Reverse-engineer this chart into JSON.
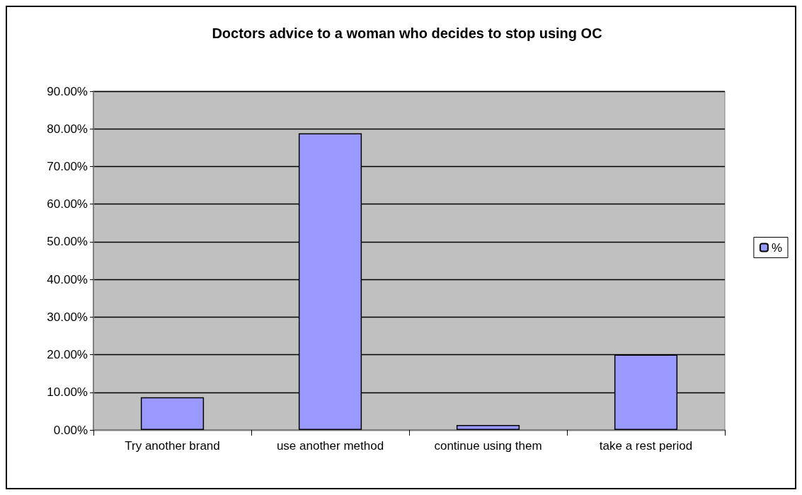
{
  "chart_data": {
    "type": "bar",
    "title": "Doctors advice to a woman who decides to stop using OC",
    "categories": [
      "Try another brand",
      "use another method",
      "continue using them",
      "take a rest period"
    ],
    "series": [
      {
        "name": "%",
        "color": "#9999ff",
        "values": [
          8.7,
          78.8,
          1.3,
          20.0
        ]
      }
    ],
    "ylim": [
      0,
      90
    ],
    "yticks": [
      {
        "value": 0,
        "label": "0.00%"
      },
      {
        "value": 10,
        "label": "10.00%"
      },
      {
        "value": 20,
        "label": "20.00%"
      },
      {
        "value": 30,
        "label": "30.00%"
      },
      {
        "value": 40,
        "label": "40.00%"
      },
      {
        "value": 50,
        "label": "50.00%"
      },
      {
        "value": 60,
        "label": "60.00%"
      },
      {
        "value": 70,
        "label": "70.00%"
      },
      {
        "value": 80,
        "label": "80.00%"
      },
      {
        "value": 90,
        "label": "90.00%"
      }
    ],
    "grid": "y",
    "legend": "right"
  }
}
